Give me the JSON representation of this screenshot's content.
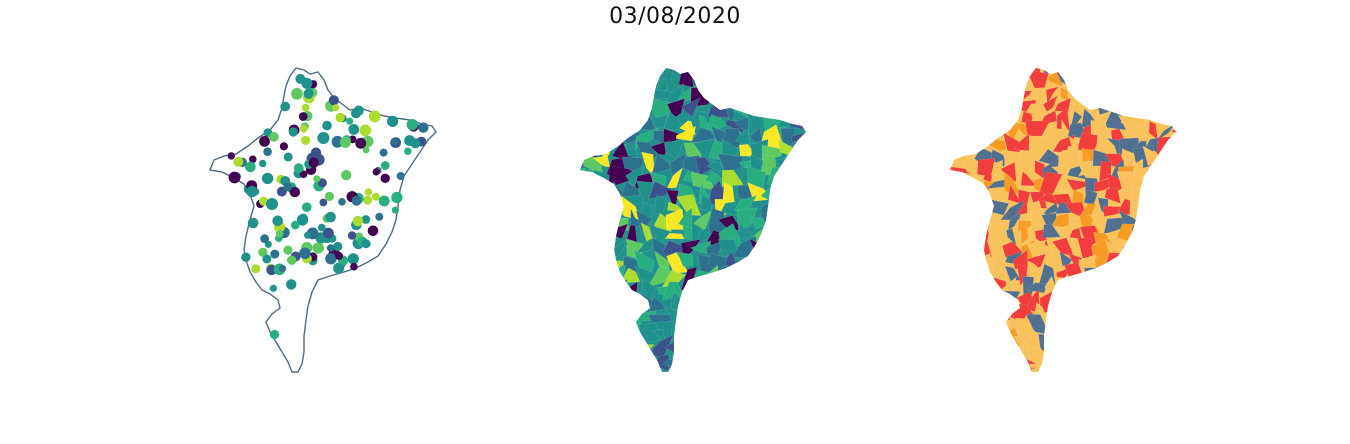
{
  "figure": {
    "title": "03/08/2020"
  },
  "panels": [
    {
      "id": "points-map",
      "kind": "state outline with municipality points (viridis)"
    },
    {
      "id": "viridis-map",
      "kind": "municipality choropleth (viridis)"
    },
    {
      "id": "categorical-map",
      "kind": "municipality choropleth (4 categories)"
    }
  ],
  "colors": {
    "outline": "#4f6b84",
    "viridis": [
      "#440154",
      "#3b528b",
      "#2c728e",
      "#21918c",
      "#28ae80",
      "#5ec962",
      "#addc30",
      "#fde725"
    ],
    "categorical": {
      "steel": "#52708f",
      "yellow": "#f9c25a",
      "orange": "#f69b23",
      "red": "#f23d3d"
    }
  }
}
